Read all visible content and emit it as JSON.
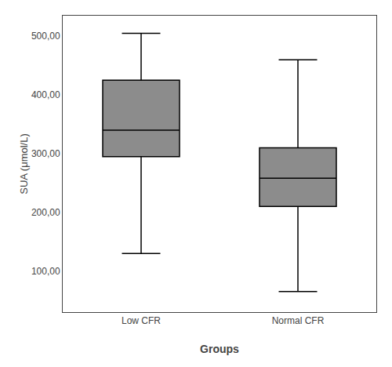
{
  "chart_data": {
    "type": "box",
    "xlabel": "Groups",
    "ylabel": "SUA (μmol/L)",
    "categories": [
      "Low CFR",
      "Normal CFR"
    ],
    "stats": [
      {
        "whislo": 130,
        "q1": 295,
        "med": 340,
        "q3": 425,
        "whishi": 505
      },
      {
        "whislo": 65,
        "q1": 210,
        "med": 258,
        "q3": 310,
        "whishi": 460
      }
    ],
    "color": "#8c8c8c",
    "ylim": [
      30,
      535
    ],
    "yticks": [
      {
        "value": 100,
        "label": "100,00"
      },
      {
        "value": 200,
        "label": "200,00"
      },
      {
        "value": 300,
        "label": "300,00"
      },
      {
        "value": 400,
        "label": "400,00"
      },
      {
        "value": 500,
        "label": "500,00"
      }
    ],
    "grid": false
  }
}
